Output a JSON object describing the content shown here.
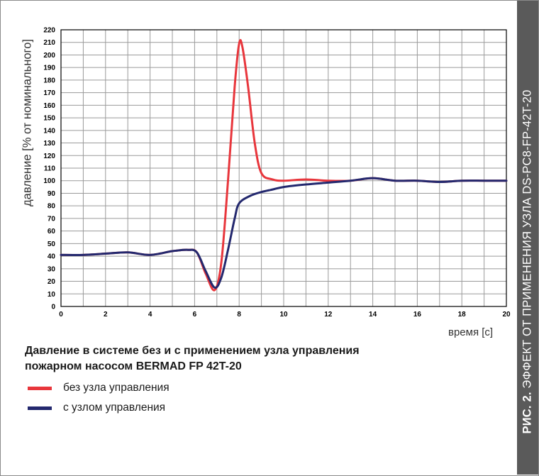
{
  "side_label": {
    "bold": "РИС. 2.",
    "text": "ЭФФЕКТ ОТ ПРИМЕНЕНИЯ УЗЛА DS-PC8-FP-42T-20"
  },
  "caption": {
    "line1": "Давление в системе без и с применением узла управления",
    "line2": "пожарном насосом BERMAD FP 42T-20"
  },
  "colors": {
    "background": "#ffffff",
    "grid": "#9a9a9a",
    "axis": "#000000",
    "side_band": "#5a5a5a"
  },
  "chart_data": {
    "type": "line",
    "title": "",
    "xlabel": "время [с]",
    "ylabel": "давление [% от номинального]",
    "xlim": [
      0,
      20
    ],
    "ylim": [
      0,
      220
    ],
    "x_ticks": [
      0,
      2,
      4,
      6,
      8,
      10,
      12,
      14,
      16,
      18,
      20
    ],
    "x_grid_step": 1,
    "y_ticks": [
      0,
      10,
      20,
      30,
      40,
      50,
      60,
      70,
      80,
      90,
      100,
      110,
      120,
      130,
      140,
      150,
      160,
      170,
      180,
      190,
      200,
      210,
      220
    ],
    "grid": true,
    "legend_position": "bottom-left",
    "series": [
      {
        "name": "без узла управления",
        "color": "#e8363c",
        "points": [
          [
            0,
            41
          ],
          [
            1,
            41
          ],
          [
            2,
            42
          ],
          [
            3,
            43
          ],
          [
            4,
            41
          ],
          [
            5,
            44
          ],
          [
            5.7,
            45
          ],
          [
            6.1,
            43
          ],
          [
            6.5,
            26
          ],
          [
            6.9,
            13
          ],
          [
            7.2,
            35
          ],
          [
            7.5,
            100
          ],
          [
            7.8,
            175
          ],
          [
            8.0,
            209
          ],
          [
            8.15,
            206
          ],
          [
            8.4,
            175
          ],
          [
            8.7,
            130
          ],
          [
            9.0,
            106
          ],
          [
            9.5,
            101
          ],
          [
            10,
            100
          ],
          [
            11,
            101
          ],
          [
            12,
            100
          ],
          [
            13,
            100
          ],
          [
            14,
            102
          ],
          [
            15,
            100
          ],
          [
            16,
            100
          ],
          [
            17,
            99
          ],
          [
            18,
            100
          ],
          [
            19,
            100
          ],
          [
            20,
            100
          ]
        ]
      },
      {
        "name": "с узлом управления",
        "color": "#23286e",
        "points": [
          [
            0,
            41
          ],
          [
            1,
            41
          ],
          [
            2,
            42
          ],
          [
            3,
            43
          ],
          [
            4,
            41
          ],
          [
            5,
            44
          ],
          [
            5.7,
            45
          ],
          [
            6.1,
            43
          ],
          [
            6.5,
            28
          ],
          [
            6.9,
            15
          ],
          [
            7.2,
            23
          ],
          [
            7.5,
            45
          ],
          [
            7.8,
            70
          ],
          [
            8.0,
            82
          ],
          [
            8.5,
            88
          ],
          [
            9,
            91
          ],
          [
            9.5,
            93
          ],
          [
            10,
            95
          ],
          [
            11,
            97
          ],
          [
            12,
            98.5
          ],
          [
            13,
            100
          ],
          [
            14,
            102
          ],
          [
            15,
            100
          ],
          [
            16,
            100
          ],
          [
            17,
            99
          ],
          [
            18,
            100
          ],
          [
            19,
            100
          ],
          [
            20,
            100
          ]
        ]
      }
    ]
  }
}
